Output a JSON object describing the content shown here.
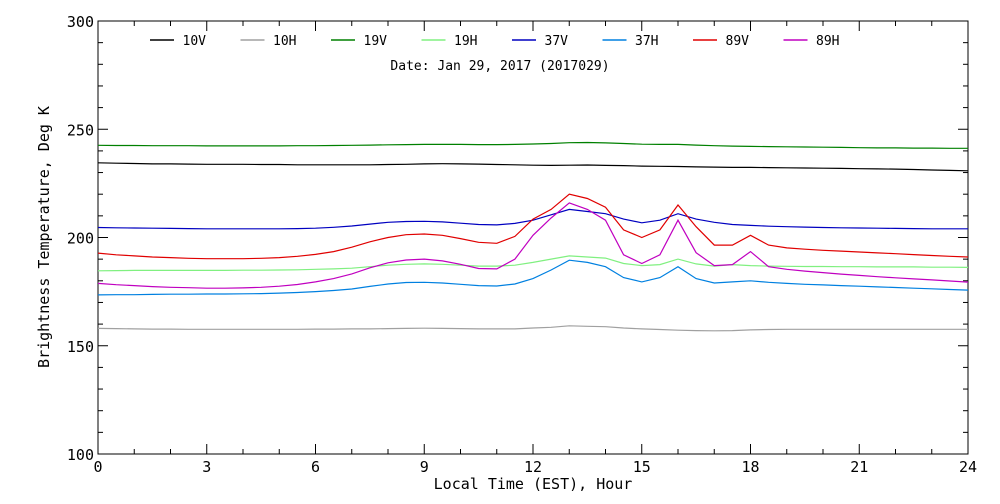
{
  "chart_data": {
    "type": "line",
    "annotation": "Date: Jan 29, 2017 (2017029)",
    "xlabel": "Local Time (EST), Hour",
    "ylabel": "Brightness Temperature, Deg K",
    "xlim": [
      0,
      24
    ],
    "ylim": [
      100,
      300
    ],
    "xticks": [
      0,
      3,
      6,
      9,
      12,
      15,
      18,
      21,
      24
    ],
    "yticks": [
      100,
      150,
      200,
      250,
      300
    ],
    "grid": false,
    "legend_position": "top",
    "x": [
      0,
      0.5,
      1,
      1.5,
      2,
      2.5,
      3,
      3.5,
      4,
      4.5,
      5,
      5.5,
      6,
      6.5,
      7,
      7.5,
      8,
      8.5,
      9,
      9.5,
      10,
      10.5,
      11,
      11.5,
      12,
      12.5,
      13,
      13.5,
      14,
      14.5,
      15,
      15.5,
      16,
      16.5,
      17,
      17.5,
      18,
      18.5,
      19,
      19.5,
      20,
      20.5,
      21,
      21.5,
      22,
      22.5,
      23,
      23.5,
      24
    ],
    "series": [
      {
        "name": "10V",
        "color": "#000000",
        "values": [
          234.5,
          234.3,
          234.2,
          234.0,
          234.0,
          233.9,
          233.8,
          233.8,
          233.8,
          233.7,
          233.7,
          233.6,
          233.6,
          233.6,
          233.6,
          233.6,
          233.7,
          233.8,
          234.0,
          234.1,
          234.0,
          233.9,
          233.7,
          233.6,
          233.4,
          233.3,
          233.4,
          233.5,
          233.3,
          233.2,
          233.0,
          232.9,
          232.8,
          232.6,
          232.5,
          232.4,
          232.4,
          232.3,
          232.2,
          232.1,
          232.0,
          231.9,
          231.8,
          231.7,
          231.6,
          231.4,
          231.2,
          231.0,
          230.8
        ]
      },
      {
        "name": "10H",
        "color": "#a0a0a0",
        "values": [
          158.0,
          157.9,
          157.8,
          157.7,
          157.7,
          157.6,
          157.6,
          157.6,
          157.6,
          157.6,
          157.6,
          157.6,
          157.7,
          157.7,
          157.8,
          157.8,
          157.9,
          158.0,
          158.1,
          158.0,
          157.9,
          157.8,
          157.8,
          157.8,
          158.2,
          158.5,
          159.2,
          159.0,
          158.8,
          158.2,
          157.8,
          157.5,
          157.2,
          157.0,
          156.9,
          157.0,
          157.3,
          157.5,
          157.6,
          157.6,
          157.6,
          157.6,
          157.6,
          157.6,
          157.6,
          157.6,
          157.6,
          157.6,
          157.6
        ]
      },
      {
        "name": "19V",
        "color": "#008000",
        "values": [
          242.6,
          242.5,
          242.5,
          242.4,
          242.4,
          242.4,
          242.3,
          242.3,
          242.3,
          242.3,
          242.3,
          242.4,
          242.4,
          242.5,
          242.6,
          242.7,
          242.8,
          242.9,
          243.0,
          243.0,
          243.0,
          242.9,
          242.9,
          243.0,
          243.2,
          243.4,
          243.8,
          243.9,
          243.7,
          243.4,
          243.1,
          243.0,
          243.0,
          242.7,
          242.4,
          242.2,
          242.1,
          242.0,
          241.9,
          241.8,
          241.7,
          241.6,
          241.5,
          241.4,
          241.4,
          241.3,
          241.3,
          241.2,
          241.2
        ]
      },
      {
        "name": "19H",
        "color": "#80f080",
        "values": [
          184.6,
          184.7,
          184.8,
          184.8,
          184.8,
          184.8,
          184.8,
          184.8,
          184.9,
          184.9,
          185.0,
          185.1,
          185.3,
          185.5,
          185.8,
          186.5,
          187.2,
          187.6,
          187.8,
          187.6,
          187.2,
          186.8,
          186.8,
          187.2,
          188.5,
          190.0,
          191.5,
          191.0,
          190.5,
          188.0,
          187.0,
          187.5,
          190.0,
          187.8,
          186.8,
          187.5,
          187.0,
          186.8,
          186.7,
          186.6,
          186.6,
          186.5,
          186.5,
          186.4,
          186.4,
          186.4,
          186.3,
          186.3,
          186.2
        ]
      },
      {
        "name": "37V",
        "color": "#0000c0",
        "values": [
          204.6,
          204.5,
          204.4,
          204.3,
          204.2,
          204.1,
          204.0,
          204.0,
          204.0,
          204.0,
          204.0,
          204.1,
          204.3,
          204.7,
          205.3,
          206.2,
          207.0,
          207.4,
          207.5,
          207.2,
          206.6,
          206.0,
          205.8,
          206.5,
          208.0,
          210.5,
          213.0,
          212.0,
          211.0,
          208.5,
          206.8,
          208.0,
          211.0,
          208.5,
          207.0,
          206.0,
          205.6,
          205.2,
          205.0,
          204.8,
          204.6,
          204.5,
          204.4,
          204.3,
          204.2,
          204.1,
          204.0,
          204.0,
          204.0
        ]
      },
      {
        "name": "37H",
        "color": "#0080e0",
        "values": [
          173.5,
          173.6,
          173.6,
          173.7,
          173.8,
          173.8,
          173.9,
          173.9,
          174.0,
          174.1,
          174.3,
          174.6,
          175.0,
          175.5,
          176.2,
          177.4,
          178.5,
          179.2,
          179.3,
          179.0,
          178.4,
          177.8,
          177.6,
          178.5,
          181.0,
          185.0,
          189.5,
          188.5,
          186.5,
          181.5,
          179.5,
          181.5,
          186.5,
          181.0,
          179.0,
          179.5,
          180.0,
          179.3,
          178.8,
          178.4,
          178.1,
          177.8,
          177.5,
          177.2,
          176.9,
          176.6,
          176.3,
          176.0,
          175.7
        ]
      },
      {
        "name": "89V",
        "color": "#e00000",
        "values": [
          192.8,
          192.0,
          191.5,
          191.0,
          190.7,
          190.4,
          190.2,
          190.2,
          190.2,
          190.4,
          190.7,
          191.3,
          192.2,
          193.5,
          195.5,
          198.0,
          200.0,
          201.3,
          201.6,
          201.0,
          199.5,
          197.8,
          197.3,
          200.5,
          208.5,
          213.0,
          220.0,
          218.0,
          214.0,
          203.5,
          200.0,
          203.5,
          215.0,
          205.0,
          196.5,
          196.5,
          201.0,
          196.5,
          195.2,
          194.6,
          194.1,
          193.7,
          193.3,
          192.9,
          192.5,
          192.1,
          191.7,
          191.3,
          191.0
        ]
      },
      {
        "name": "89H",
        "color": "#c000c0",
        "values": [
          178.8,
          178.2,
          177.8,
          177.3,
          177.0,
          176.8,
          176.6,
          176.6,
          176.7,
          177.0,
          177.5,
          178.3,
          179.5,
          181.0,
          183.2,
          186.0,
          188.3,
          189.6,
          190.0,
          189.2,
          187.6,
          185.7,
          185.5,
          190.0,
          201.0,
          209.0,
          216.0,
          213.0,
          208.0,
          192.0,
          188.0,
          192.0,
          208.0,
          193.0,
          187.0,
          187.5,
          193.5,
          186.5,
          185.3,
          184.5,
          183.8,
          183.1,
          182.5,
          181.9,
          181.4,
          180.9,
          180.4,
          179.9,
          179.4
        ]
      }
    ]
  }
}
